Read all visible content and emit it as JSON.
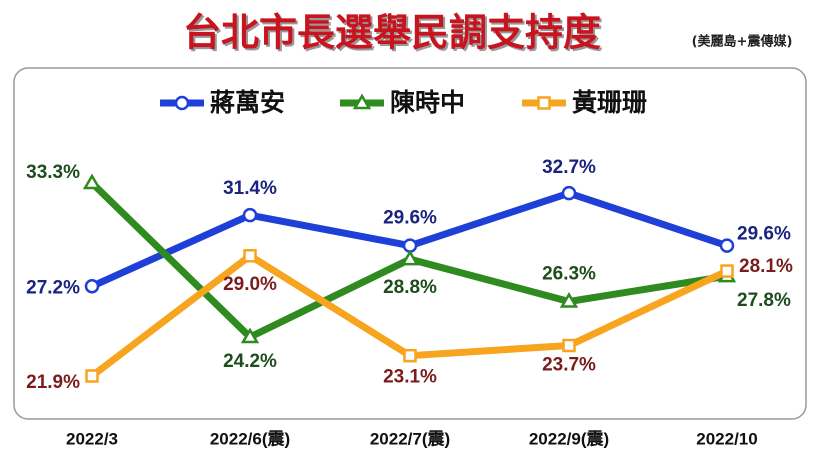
{
  "chart_data": {
    "type": "line",
    "title": "台北市長選舉民調支持度",
    "subtitle": "(美麗島+震傳媒)",
    "categories": [
      "2022/3",
      "2022/6(震)",
      "2022/7(震)",
      "2022/9(震)",
      "2022/10"
    ],
    "series": [
      {
        "name": "蔣萬安",
        "color": "#1e3fd8",
        "label_color": "#1a2380",
        "marker": "circle",
        "values": [
          27.2,
          31.4,
          29.6,
          32.7,
          29.6
        ],
        "value_labels": [
          "27.2%",
          "31.4%",
          "29.6%",
          "32.7%",
          "29.6%"
        ]
      },
      {
        "name": "陳時中",
        "color": "#2f8a1f",
        "label_color": "#1d4d1b",
        "marker": "triangle",
        "values": [
          33.3,
          24.2,
          28.8,
          26.3,
          27.8
        ],
        "value_labels": [
          "33.3%",
          "24.2%",
          "28.8%",
          "26.3%",
          "27.8%"
        ]
      },
      {
        "name": "黃珊珊",
        "color": "#f7a41f",
        "label_color": "#7a1c1c",
        "marker": "square",
        "values": [
          21.9,
          29.0,
          23.1,
          23.7,
          28.1
        ],
        "value_labels": [
          "21.9%",
          "29.0%",
          "23.1%",
          "23.7%",
          "28.1%"
        ]
      }
    ]
  }
}
